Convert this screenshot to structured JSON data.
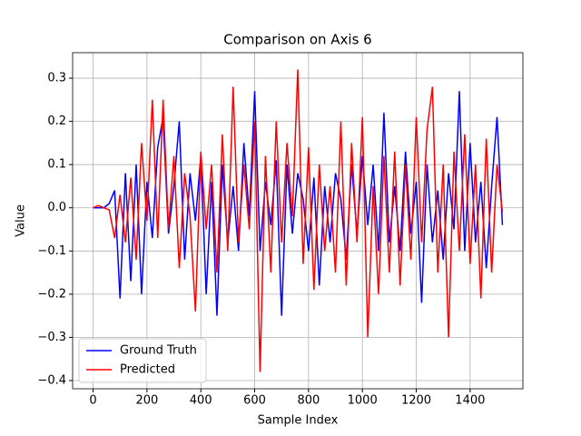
{
  "chart_data": {
    "type": "line",
    "title": "Comparison on Axis 6",
    "x_label": "Sample Index",
    "y_label": "Value",
    "x": [
      0,
      20,
      40,
      60,
      80,
      100,
      120,
      140,
      160,
      180,
      200,
      220,
      240,
      260,
      280,
      300,
      320,
      340,
      360,
      380,
      400,
      420,
      440,
      460,
      480,
      500,
      520,
      540,
      560,
      580,
      600,
      620,
      640,
      660,
      680,
      700,
      720,
      740,
      760,
      780,
      800,
      820,
      840,
      860,
      880,
      900,
      920,
      940,
      960,
      980,
      1000,
      1020,
      1040,
      1060,
      1080,
      1100,
      1120,
      1140,
      1160,
      1180,
      1200,
      1220,
      1240,
      1260,
      1280,
      1300,
      1320,
      1340,
      1360,
      1380,
      1400,
      1420,
      1440,
      1460,
      1480,
      1500,
      1520
    ],
    "series": [
      {
        "name": "Ground Truth",
        "color": "#0000ff",
        "values": [
          0,
          0,
          0,
          0.01,
          0.04,
          -0.21,
          0.08,
          -0.17,
          0.1,
          -0.2,
          0.06,
          -0.07,
          0.14,
          0.21,
          -0.06,
          0.05,
          0.2,
          -0.12,
          0.08,
          -0.03,
          0.12,
          -0.2,
          0.06,
          -0.25,
          0.1,
          -0.08,
          0.05,
          -0.1,
          0.15,
          -0.02,
          0.27,
          -0.1,
          0.06,
          -0.04,
          0.11,
          -0.25,
          0.1,
          -0.06,
          0.08,
          0.02,
          -0.1,
          0.07,
          -0.18,
          0.05,
          -0.08,
          0.08,
          0.02,
          -0.12,
          0.1,
          -0.06,
          0.12,
          -0.04,
          0.1,
          -0.1,
          0.22,
          -0.08,
          0.05,
          -0.1,
          0.13,
          -0.06,
          0.06,
          -0.22,
          0.1,
          -0.08,
          0.04,
          -0.12,
          0.08,
          -0.05,
          0.27,
          -0.1,
          0.15,
          -0.08,
          0.06,
          -0.14,
          0.05,
          0.21,
          -0.04
        ]
      },
      {
        "name": "Predicted",
        "color": "#ff0000",
        "values": [
          0,
          0.005,
          0,
          -0.005,
          -0.07,
          0.03,
          -0.08,
          0.07,
          -0.12,
          0.15,
          -0.03,
          0.25,
          -0.07,
          0.25,
          -0.05,
          0.12,
          -0.14,
          0.08,
          -0.02,
          -0.24,
          0.13,
          -0.05,
          0.1,
          -0.15,
          0.17,
          -0.1,
          0.28,
          -0.08,
          0.1,
          -0.05,
          0.2,
          -0.38,
          0.12,
          -0.15,
          0.2,
          -0.08,
          0.15,
          -0.02,
          0.32,
          -0.13,
          0.14,
          -0.19,
          0.1,
          -0.1,
          0.05,
          -0.15,
          0.2,
          -0.18,
          0.15,
          -0.08,
          0.21,
          -0.3,
          0.05,
          -0.2,
          0.12,
          -0.15,
          0.13,
          -0.18,
          0.1,
          -0.12,
          0.21,
          -0.08,
          0.18,
          0.28,
          -0.15,
          0.1,
          -0.3,
          0.13,
          -0.1,
          0.17,
          -0.13,
          0.1,
          -0.21,
          0.16,
          -0.15,
          0.1,
          -0.01
        ]
      }
    ],
    "xlim": [
      -76,
      1596
    ],
    "ylim": [
      -0.419,
      0.359
    ],
    "xticks": [
      0,
      200,
      400,
      600,
      800,
      1000,
      1200,
      1400
    ],
    "yticks": [
      {
        "value": -0.4,
        "label": "−0.4"
      },
      {
        "value": -0.3,
        "label": "−0.3"
      },
      {
        "value": -0.2,
        "label": "−0.2"
      },
      {
        "value": -0.1,
        "label": "−0.1"
      },
      {
        "value": 0,
        "label": "0.0"
      },
      0.1,
      0.2,
      0.3
    ],
    "grid": true,
    "legend": "lower left"
  }
}
